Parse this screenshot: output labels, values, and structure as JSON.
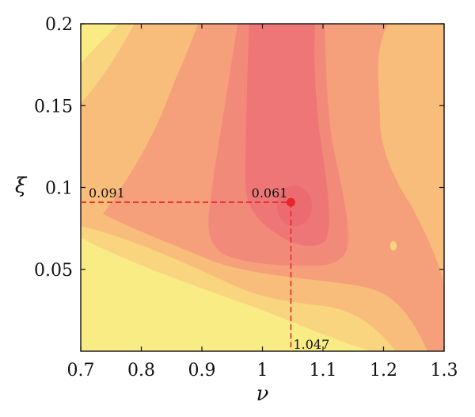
{
  "chart_data": {
    "type": "heatmap",
    "subtype": "filled-contour",
    "xlabel": "ν",
    "ylabel": "ξ",
    "xlim": [
      0.7,
      1.3
    ],
    "ylim": [
      0.0,
      0.2
    ],
    "xticks": [
      0.7,
      0.8,
      0.9,
      1.0,
      1.1,
      1.2,
      1.3
    ],
    "xtick_labels": [
      "0.7",
      "0.8",
      "0.9",
      "1",
      "1.1",
      "1.2",
      "1.3"
    ],
    "yticks": [
      0.05,
      0.1,
      0.15,
      0.2
    ],
    "ytick_labels": [
      "0.05",
      "0.1",
      "0.15",
      "0.2"
    ],
    "colormap": [
      "#f9ec85",
      "#f9d57f",
      "#f8bd7a",
      "#f5a07a",
      "#f28a7a",
      "#ee7676"
    ],
    "optimum": {
      "x": 1.047,
      "y": 0.091,
      "value": 0.061,
      "x_label": "1.047",
      "y_label": "0.091",
      "value_label": "0.061",
      "marker_color": "#e8262a",
      "guide_color": "#e8262a"
    },
    "grid": false,
    "legend": "none"
  }
}
